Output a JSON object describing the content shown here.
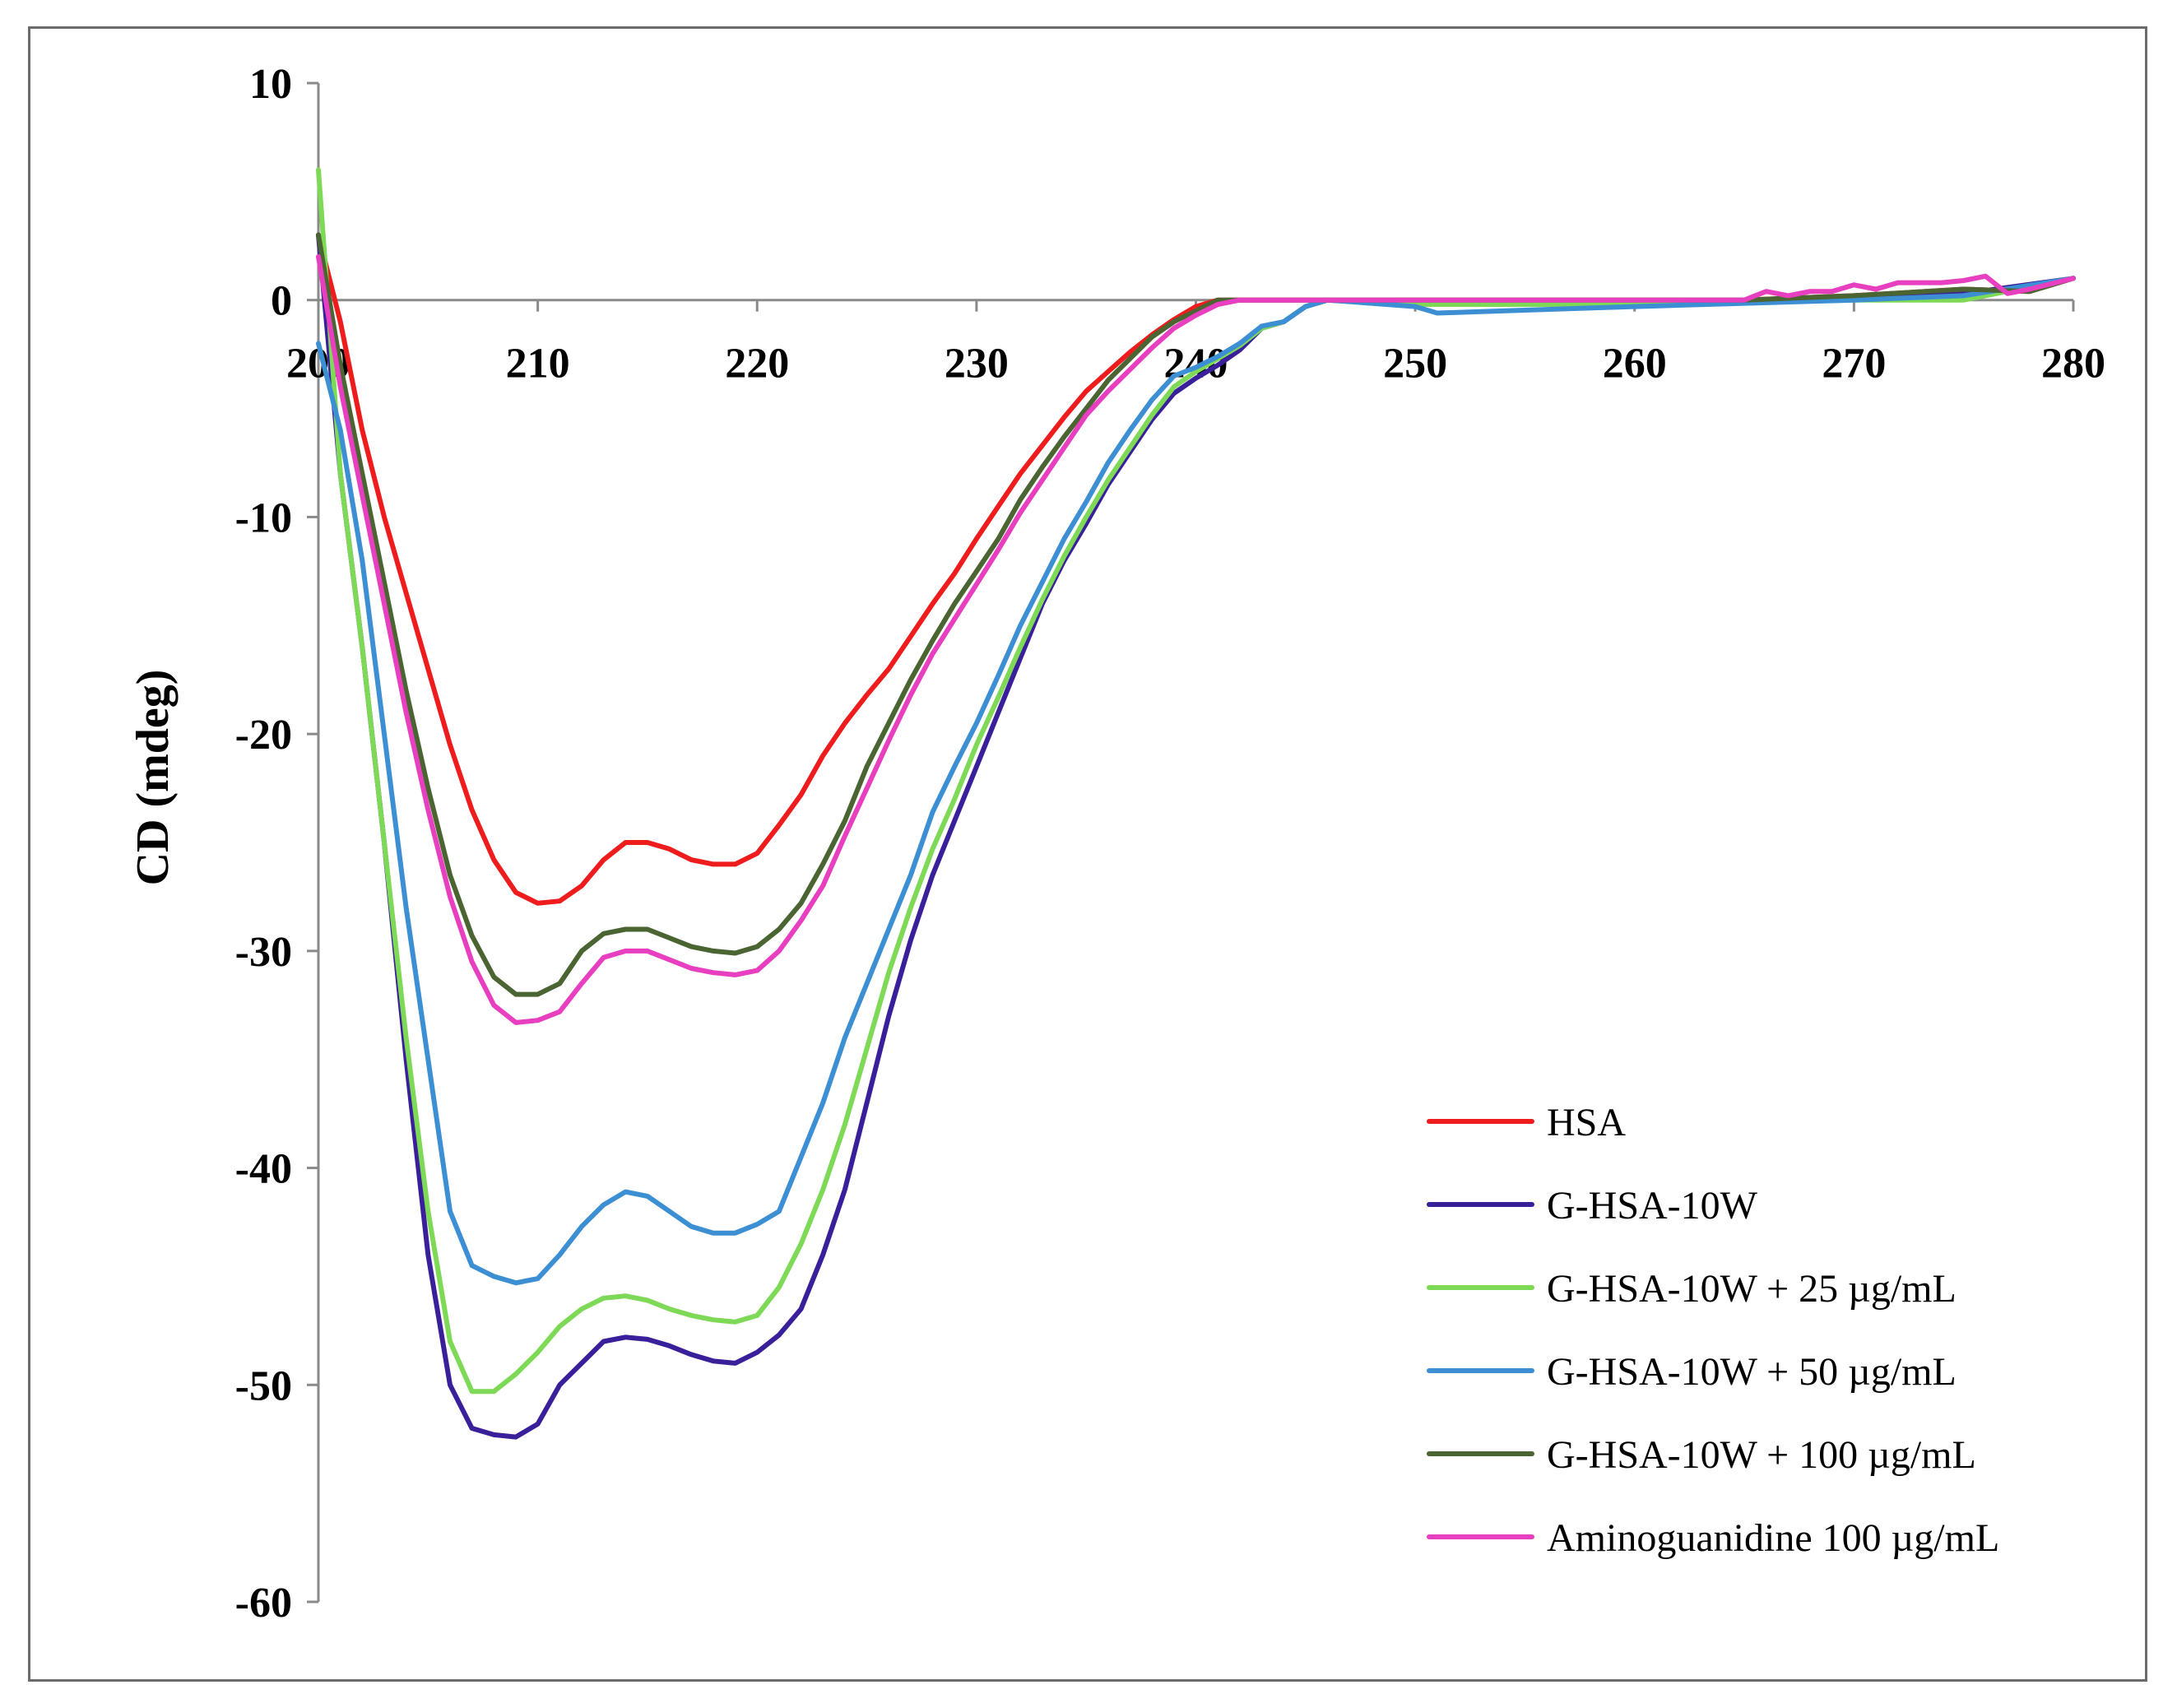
{
  "chart_data": {
    "type": "line",
    "title": "",
    "xlabel": "",
    "ylabel": "CD (mdeg)",
    "xlim": [
      200,
      280
    ],
    "ylim": [
      -60,
      10
    ],
    "x_ticks": [
      200,
      210,
      220,
      230,
      240,
      250,
      260,
      270,
      280
    ],
    "y_ticks": [
      10,
      0,
      -10,
      -20,
      -30,
      -40,
      -50,
      -60
    ],
    "grid": false,
    "legend_position": "bottom-right",
    "series": [
      {
        "name": "HSA",
        "color": "#ee1c1c",
        "x": [
          200,
          201,
          202,
          203,
          204,
          205,
          206,
          207,
          208,
          209,
          210,
          211,
          212,
          213,
          214,
          215,
          216,
          217,
          218,
          219,
          220,
          221,
          222,
          223,
          224,
          225,
          226,
          227,
          228,
          229,
          230,
          231,
          232,
          233,
          234,
          235,
          236,
          237,
          238,
          239,
          240,
          241,
          242,
          245,
          250,
          260,
          265,
          270,
          275,
          278,
          280
        ],
        "y": [
          3,
          -1,
          -6,
          -10,
          -13.5,
          -17,
          -20.5,
          -23.5,
          -25.8,
          -27.3,
          -27.8,
          -27.7,
          -27,
          -25.8,
          -25,
          -25,
          -25.3,
          -25.8,
          -26,
          -26,
          -25.5,
          -24.2,
          -22.8,
          -21,
          -19.5,
          -18.2,
          -17,
          -15.5,
          -14,
          -12.6,
          -11,
          -9.5,
          -8,
          -6.7,
          -5.4,
          -4.2,
          -3.3,
          -2.4,
          -1.6,
          -0.9,
          -0.3,
          0,
          0,
          0,
          0,
          0,
          0,
          0.2,
          0.5,
          0.4,
          1
        ]
      },
      {
        "name": "G-HSA-10W",
        "color": "#3a1f9a",
        "x": [
          200,
          201,
          202,
          203,
          204,
          205,
          206,
          207,
          208,
          209,
          210,
          211,
          212,
          213,
          214,
          215,
          216,
          217,
          218,
          219,
          220,
          221,
          222,
          223,
          224,
          225,
          226,
          227,
          228,
          229,
          230,
          231,
          232,
          233,
          234,
          235,
          236,
          237,
          238,
          239,
          240,
          241,
          242,
          243,
          244,
          245,
          246,
          250,
          260,
          270,
          275,
          280
        ],
        "y": [
          3,
          -8,
          -16,
          -25,
          -35,
          -44,
          -50,
          -52,
          -52.3,
          -52.4,
          -51.8,
          -50,
          -49,
          -48,
          -47.8,
          -47.9,
          -48.2,
          -48.6,
          -48.9,
          -49,
          -48.5,
          -47.7,
          -46.5,
          -44,
          -41,
          -37,
          -33,
          -29.5,
          -26.5,
          -24,
          -21.5,
          -19,
          -16.5,
          -14,
          -12,
          -10.3,
          -8.5,
          -7,
          -5.5,
          -4.3,
          -3.6,
          -3,
          -2.3,
          -1.3,
          -1,
          -0.3,
          0,
          -0.2,
          -0.2,
          0.1,
          0.3,
          1
        ]
      },
      {
        "name": "G-HSA-10W + 25 µg/mL",
        "color": "#7ed957",
        "x": [
          200,
          201,
          202,
          203,
          204,
          205,
          206,
          207,
          208,
          209,
          210,
          211,
          212,
          213,
          214,
          215,
          216,
          217,
          218,
          219,
          220,
          221,
          222,
          223,
          224,
          225,
          226,
          227,
          228,
          229,
          230,
          231,
          232,
          233,
          234,
          235,
          236,
          237,
          238,
          239,
          240,
          241,
          242,
          243,
          244,
          245,
          246,
          250,
          260,
          270,
          275,
          280
        ],
        "y": [
          6,
          -8,
          -16,
          -25,
          -34,
          -42,
          -48,
          -50.3,
          -50.3,
          -49.5,
          -48.5,
          -47.3,
          -46.5,
          -46,
          -45.9,
          -46.1,
          -46.5,
          -46.8,
          -47,
          -47.1,
          -46.8,
          -45.5,
          -43.5,
          -41,
          -38,
          -34.5,
          -31,
          -28,
          -25.3,
          -23,
          -20.5,
          -18.3,
          -16,
          -13.8,
          -11.8,
          -10,
          -8.3,
          -6.8,
          -5.3,
          -4,
          -3.3,
          -2.7,
          -2.1,
          -1.3,
          -1,
          -0.3,
          0,
          -0.2,
          -0.2,
          0,
          0,
          1
        ]
      },
      {
        "name": "G-HSA-10W + 50 µg/mL",
        "color": "#3d8fd4",
        "x": [
          200,
          201,
          202,
          203,
          204,
          205,
          206,
          207,
          208,
          209,
          210,
          211,
          212,
          213,
          214,
          215,
          216,
          217,
          218,
          219,
          220,
          221,
          222,
          223,
          224,
          225,
          226,
          227,
          228,
          229,
          230,
          231,
          232,
          233,
          234,
          235,
          236,
          237,
          238,
          239,
          240,
          241,
          242,
          243,
          244,
          245,
          246,
          250,
          251,
          260,
          270,
          275,
          280
        ],
        "y": [
          -2,
          -6,
          -12,
          -20,
          -28,
          -35,
          -42,
          -44.5,
          -45,
          -45.3,
          -45.1,
          -44,
          -42.7,
          -41.7,
          -41.1,
          -41.3,
          -42,
          -42.7,
          -43,
          -43,
          -42.6,
          -42,
          -39.5,
          -37,
          -34,
          -31.5,
          -29,
          -26.5,
          -23.6,
          -21.5,
          -19.5,
          -17.3,
          -15,
          -13,
          -11,
          -9.3,
          -7.5,
          -6,
          -4.6,
          -3.5,
          -3.1,
          -2.6,
          -2,
          -1.2,
          -1,
          -0.3,
          0,
          -0.3,
          -0.6,
          -0.3,
          0,
          0.2,
          1
        ]
      },
      {
        "name": "G-HSA-10W + 100 µg/mL",
        "color": "#4a6432",
        "x": [
          200,
          201,
          202,
          203,
          204,
          205,
          206,
          207,
          208,
          209,
          210,
          211,
          212,
          213,
          214,
          215,
          216,
          217,
          218,
          219,
          220,
          221,
          222,
          223,
          224,
          225,
          226,
          227,
          228,
          229,
          230,
          231,
          232,
          233,
          234,
          235,
          236,
          237,
          238,
          239,
          240,
          241,
          242,
          245,
          250,
          260,
          265,
          270,
          275,
          278,
          280
        ],
        "y": [
          3,
          -3,
          -8,
          -13,
          -18,
          -22.5,
          -26.5,
          -29.3,
          -31.2,
          -32,
          -32,
          -31.5,
          -30,
          -29.2,
          -29,
          -29,
          -29.4,
          -29.8,
          -30,
          -30.1,
          -29.8,
          -29,
          -27.8,
          -26,
          -24,
          -21.5,
          -19.5,
          -17.5,
          -15.7,
          -14,
          -12.5,
          -11,
          -9.2,
          -7.7,
          -6.3,
          -5,
          -3.7,
          -2.7,
          -1.7,
          -1,
          -0.5,
          0,
          0,
          0,
          0,
          0,
          0,
          0.2,
          0.5,
          0.4,
          1
        ]
      },
      {
        "name": "Aminoguanidine 100 µg/mL",
        "color": "#e73fbf",
        "x": [
          200,
          201,
          202,
          203,
          204,
          205,
          206,
          207,
          208,
          209,
          210,
          211,
          212,
          213,
          214,
          215,
          216,
          217,
          218,
          219,
          220,
          221,
          222,
          223,
          224,
          225,
          226,
          227,
          228,
          229,
          230,
          231,
          232,
          233,
          234,
          235,
          236,
          237,
          238,
          239,
          240,
          241,
          242,
          245,
          250,
          260,
          265,
          266,
          267,
          268,
          269,
          270,
          271,
          272,
          273,
          274,
          275,
          276,
          277,
          278,
          280
        ],
        "y": [
          2,
          -4,
          -9,
          -14,
          -19,
          -23.5,
          -27.5,
          -30.5,
          -32.5,
          -33.3,
          -33.2,
          -32.8,
          -31.5,
          -30.3,
          -30,
          -30,
          -30.4,
          -30.8,
          -31,
          -31.1,
          -30.9,
          -30,
          -28.6,
          -27,
          -24.7,
          -22.5,
          -20.3,
          -18.2,
          -16.3,
          -14.7,
          -13.1,
          -11.5,
          -9.8,
          -8.3,
          -6.8,
          -5.3,
          -4.2,
          -3.2,
          -2.2,
          -1.3,
          -0.7,
          -0.2,
          0,
          0,
          0,
          0,
          0,
          0.4,
          0.2,
          0.4,
          0.4,
          0.7,
          0.5,
          0.8,
          0.8,
          0.8,
          0.9,
          1.1,
          0.3,
          0.5,
          1
        ]
      }
    ]
  }
}
